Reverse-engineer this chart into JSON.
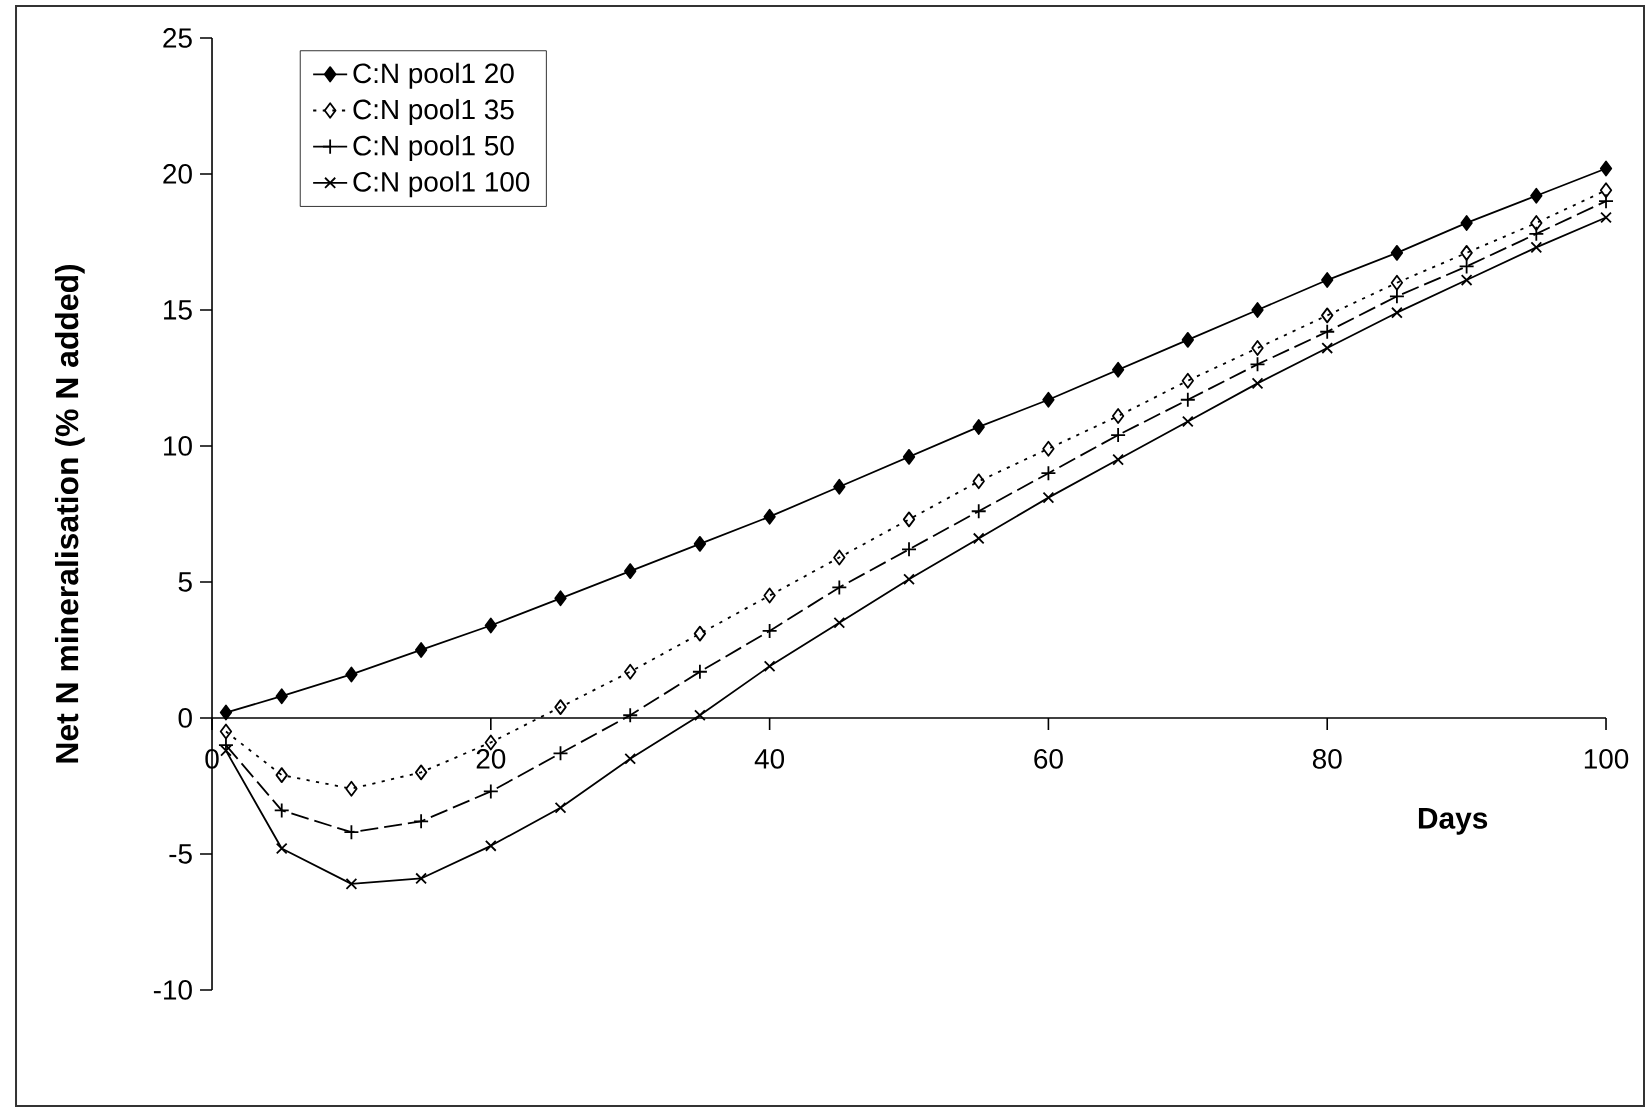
{
  "chart_data": {
    "type": "line",
    "xlabel": "Days",
    "ylabel": "Net N mineralisation (% N added)",
    "x": [
      1,
      5,
      10,
      15,
      20,
      25,
      30,
      35,
      40,
      45,
      50,
      55,
      60,
      65,
      70,
      75,
      80,
      85,
      90,
      95,
      100
    ],
    "series": [
      {
        "name": "C:N pool1  20",
        "color": "#000000",
        "marker": "diamond",
        "line_style": "solid",
        "values": [
          0.2,
          0.8,
          1.6,
          2.5,
          3.4,
          4.4,
          5.4,
          6.4,
          7.4,
          8.5,
          9.6,
          10.7,
          11.7,
          12.8,
          13.9,
          15.0,
          16.1,
          17.1,
          18.2,
          19.2,
          20.2
        ]
      },
      {
        "name": "C:N pool1  35",
        "color": "#000000",
        "marker": "diamond",
        "line_style": "dotted",
        "values": [
          -0.5,
          -2.1,
          -2.6,
          -2.0,
          -0.9,
          0.4,
          1.7,
          3.1,
          4.5,
          5.9,
          7.3,
          8.7,
          9.9,
          11.1,
          12.4,
          13.6,
          14.8,
          16.0,
          17.1,
          18.2,
          19.4
        ]
      },
      {
        "name": "C:N pool1  50",
        "color": "#000000",
        "marker": "cross",
        "line_style": "dashed",
        "values": [
          -1.0,
          -3.4,
          -4.2,
          -3.8,
          -2.7,
          -1.3,
          0.1,
          1.7,
          3.2,
          4.8,
          6.2,
          7.6,
          9.0,
          10.4,
          11.7,
          13.0,
          14.2,
          15.5,
          16.6,
          17.8,
          19.0
        ]
      },
      {
        "name": "C:N pool1  100",
        "color": "#000000",
        "marker": "cross",
        "line_style": "solid",
        "values": [
          -1.2,
          -4.8,
          -6.1,
          -5.9,
          -4.7,
          -3.3,
          -1.5,
          0.1,
          1.9,
          3.5,
          5.1,
          6.6,
          8.1,
          9.5,
          10.9,
          12.3,
          13.6,
          14.9,
          16.1,
          17.3,
          18.4
        ]
      }
    ],
    "xlim": [
      0,
      100
    ],
    "xticks": [
      0,
      20,
      40,
      60,
      80,
      100
    ],
    "ylim": [
      -10,
      25
    ],
    "yticks": [
      -10,
      -5,
      0,
      5,
      10,
      15,
      20,
      25
    ],
    "grid": false,
    "legend": "top left"
  }
}
